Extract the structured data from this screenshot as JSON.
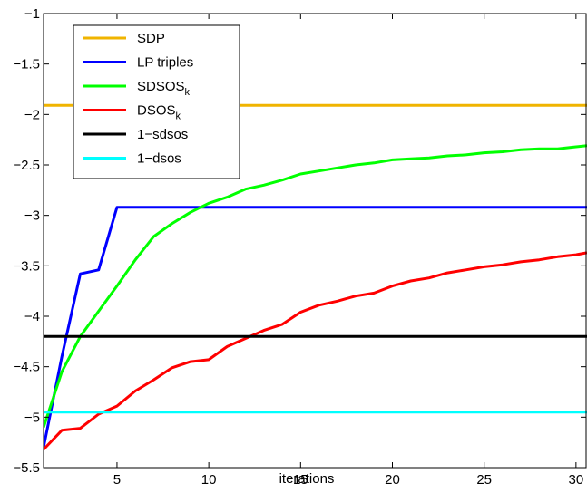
{
  "chart_data": {
    "type": "line",
    "title": "",
    "xlabel": "iterations",
    "ylabel": "",
    "xlim": [
      1,
      30.6
    ],
    "ylim": [
      -5.5,
      -1
    ],
    "x_ticks": [
      5,
      10,
      15,
      20,
      25,
      30
    ],
    "y_ticks": [
      -5.5,
      -5,
      -4.5,
      -4,
      -3.5,
      -3,
      -2.5,
      -2,
      -1.5,
      -1
    ],
    "grid": false,
    "legend": "top-left",
    "series": [
      {
        "name": "SDP",
        "sub": "",
        "color": "#f0b400",
        "x": [
          1,
          30.6
        ],
        "y": [
          -1.91,
          -1.91
        ]
      },
      {
        "name": "LP triples",
        "sub": "",
        "color": "#0000ff",
        "x": [
          1,
          2,
          3,
          4,
          5,
          6,
          30.6
        ],
        "y": [
          -5.3,
          -4.4,
          -3.58,
          -3.54,
          -2.92,
          -2.92,
          -2.92
        ]
      },
      {
        "name": "SDSOS",
        "sub": "k",
        "color": "#00ff00",
        "x": [
          1,
          2,
          3,
          4,
          5,
          6,
          7,
          8,
          9,
          10,
          11,
          12,
          13,
          14,
          15,
          16,
          17,
          18,
          19,
          20,
          21,
          22,
          23,
          24,
          25,
          26,
          27,
          28,
          29,
          30,
          30.6
        ],
        "y": [
          -5.1,
          -4.55,
          -4.2,
          -3.95,
          -3.7,
          -3.44,
          -3.21,
          -3.08,
          -2.97,
          -2.88,
          -2.82,
          -2.74,
          -2.7,
          -2.65,
          -2.59,
          -2.56,
          -2.53,
          -2.5,
          -2.48,
          -2.45,
          -2.44,
          -2.43,
          -2.41,
          -2.4,
          -2.38,
          -2.37,
          -2.35,
          -2.34,
          -2.34,
          -2.32,
          -2.31
        ]
      },
      {
        "name": "DSOS",
        "sub": "k",
        "color": "#ff0000",
        "x": [
          1,
          2,
          3,
          4,
          5,
          6,
          7,
          8,
          9,
          10,
          11,
          12,
          13,
          14,
          15,
          16,
          17,
          18,
          19,
          20,
          21,
          22,
          23,
          24,
          25,
          26,
          27,
          28,
          29,
          30,
          30.6
        ],
        "y": [
          -5.32,
          -5.13,
          -5.11,
          -4.97,
          -4.89,
          -4.74,
          -4.63,
          -4.51,
          -4.45,
          -4.43,
          -4.3,
          -4.22,
          -4.14,
          -4.08,
          -3.96,
          -3.89,
          -3.85,
          -3.8,
          -3.77,
          -3.7,
          -3.65,
          -3.62,
          -3.57,
          -3.54,
          -3.51,
          -3.49,
          -3.46,
          -3.44,
          -3.41,
          -3.39,
          -3.37
        ]
      },
      {
        "name": "1−sdsos",
        "sub": "",
        "color": "#000000",
        "x": [
          1,
          30.6
        ],
        "y": [
          -4.2,
          -4.2
        ]
      },
      {
        "name": "1−dsos",
        "sub": "",
        "color": "#00ffff",
        "x": [
          1,
          30.6
        ],
        "y": [
          -4.95,
          -4.95
        ]
      }
    ]
  }
}
